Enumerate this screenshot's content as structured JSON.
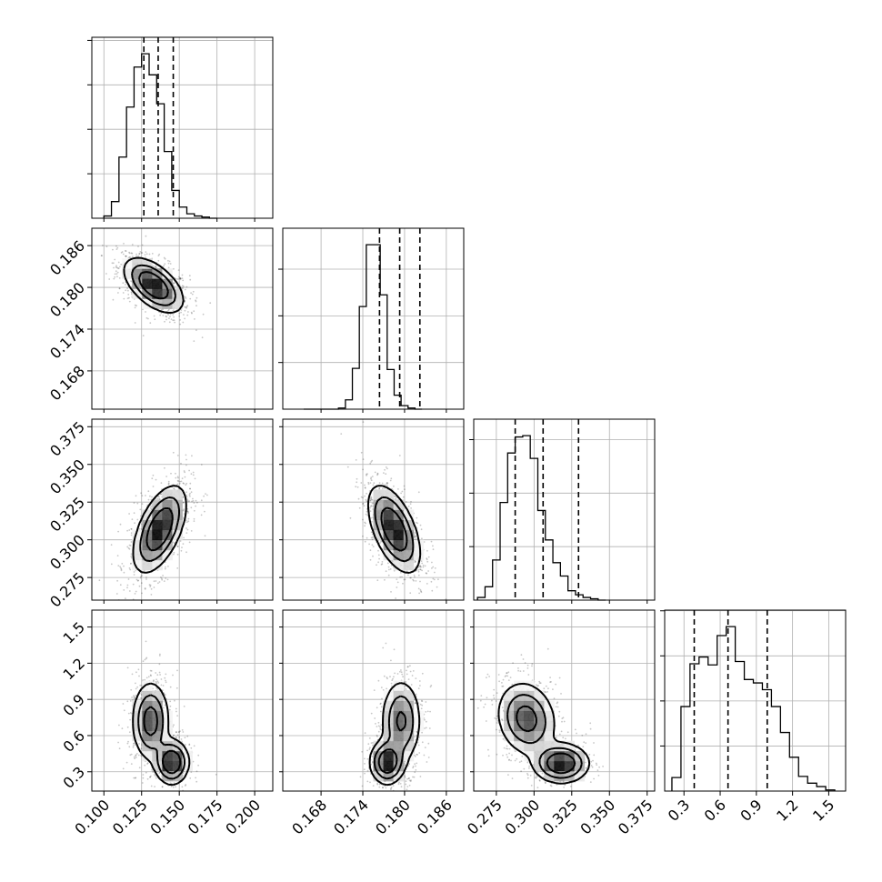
{
  "chart_data": {
    "type": "corner",
    "grid": true,
    "parameters": [
      {
        "index": 0,
        "range": [
          0.092,
          0.212
        ],
        "ticks": [
          0.1,
          0.125,
          0.15,
          0.175,
          0.2
        ],
        "tick_labels": [
          "0.100",
          "0.125",
          "0.150",
          "0.175",
          "0.200"
        ]
      },
      {
        "index": 1,
        "range": [
          0.1625,
          0.1885
        ],
        "ticks": [
          0.168,
          0.174,
          0.18,
          0.186
        ],
        "tick_labels": [
          "0.168",
          "0.174",
          "0.180",
          "0.186"
        ]
      },
      {
        "index": 2,
        "range": [
          0.26,
          0.38
        ],
        "ticks": [
          0.275,
          0.3,
          0.325,
          0.35,
          0.375
        ],
        "tick_labels": [
          "0.275",
          "0.300",
          "0.325",
          "0.350",
          "0.375"
        ]
      },
      {
        "index": 3,
        "range": [
          0.14,
          1.64
        ],
        "ticks": [
          0.3,
          0.6,
          0.9,
          1.2,
          1.5
        ],
        "tick_labels": [
          "0.3",
          "0.6",
          "0.9",
          "1.2",
          "1.5"
        ]
      }
    ],
    "histograms": [
      {
        "param": 0,
        "edges_from": 0.1,
        "bin_width": 0.005,
        "counts": [
          2,
          15,
          55,
          100,
          136,
          148,
          129,
          103,
          60,
          25,
          10,
          4,
          2,
          1,
          0
        ],
        "quantiles": [
          0.1265,
          0.136,
          0.146
        ]
      },
      {
        "param": 1,
        "edges_from": 0.1655,
        "bin_width": 0.001,
        "counts": [
          0,
          0,
          0,
          0,
          0,
          1,
          8,
          35,
          88,
          141,
          141,
          98,
          34,
          12,
          3,
          1,
          0
        ],
        "quantiles": [
          0.1764,
          0.1793,
          0.1822
        ]
      },
      {
        "param": 2,
        "edges_from": 0.2625,
        "bin_width": 0.005,
        "counts": [
          2,
          10,
          30,
          73,
          110,
          122,
          123,
          106,
          67,
          45,
          28,
          18,
          7,
          4,
          2,
          1,
          0
        ],
        "quantiles": [
          0.2875,
          0.306,
          0.3295
        ]
      },
      {
        "param": 3,
        "edges_from": 0.2,
        "bin_width": 0.075,
        "counts": [
          12,
          75,
          113,
          119,
          112,
          138,
          146,
          115,
          99,
          96,
          90,
          75,
          52,
          30,
          13,
          7,
          4,
          1
        ],
        "quantiles": [
          0.385,
          0.665,
          0.99
        ]
      }
    ],
    "joint_densities": [
      {
        "x": 0,
        "y": 1,
        "components": [
          {
            "mx": 0.133,
            "my": 0.1803,
            "sx": 0.0095,
            "sy": 0.0019,
            "rho": -0.55,
            "w": 1.0
          }
        ]
      },
      {
        "x": 0,
        "y": 2,
        "components": [
          {
            "mx": 0.137,
            "my": 0.307,
            "sx": 0.0085,
            "sy": 0.014,
            "rho": 0.55,
            "w": 1.0
          }
        ]
      },
      {
        "x": 1,
        "y": 2,
        "components": [
          {
            "mx": 0.1785,
            "my": 0.307,
            "sx": 0.0018,
            "sy": 0.014,
            "rho": -0.55,
            "w": 1.0
          }
        ]
      },
      {
        "x": 0,
        "y": 3,
        "components": [
          {
            "mx": 0.131,
            "my": 0.72,
            "sx": 0.006,
            "sy": 0.16,
            "rho": 0.0,
            "w": 0.6
          },
          {
            "mx": 0.145,
            "my": 0.38,
            "sx": 0.0055,
            "sy": 0.09,
            "rho": 0.0,
            "w": 0.4
          }
        ]
      },
      {
        "x": 1,
        "y": 3,
        "components": [
          {
            "mx": 0.1795,
            "my": 0.72,
            "sx": 0.0014,
            "sy": 0.17,
            "rho": 0.0,
            "w": 0.6
          },
          {
            "mx": 0.1775,
            "my": 0.38,
            "sx": 0.0012,
            "sy": 0.09,
            "rho": 0.0,
            "w": 0.4
          }
        ]
      },
      {
        "x": 2,
        "y": 3,
        "components": [
          {
            "mx": 0.295,
            "my": 0.74,
            "sx": 0.0095,
            "sy": 0.15,
            "rho": -0.15,
            "w": 0.6
          },
          {
            "mx": 0.318,
            "my": 0.37,
            "sx": 0.009,
            "sy": 0.08,
            "rho": 0.0,
            "w": 0.4
          }
        ]
      }
    ]
  }
}
